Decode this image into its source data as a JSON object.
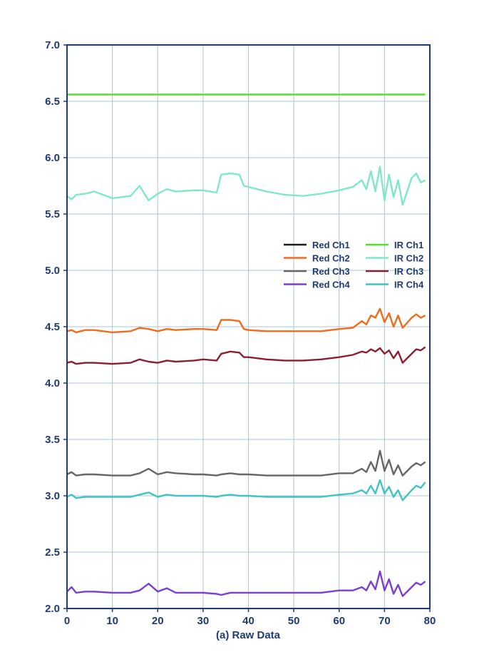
{
  "chart_data": {
    "type": "line",
    "title": "",
    "xlabel": "(a) Raw Data",
    "ylabel": "",
    "xlim": [
      0,
      80
    ],
    "ylim": [
      2.0,
      7.0
    ],
    "xticks": [
      0,
      10,
      20,
      30,
      40,
      50,
      60,
      70,
      80
    ],
    "yticks": [
      "2.0",
      "2.5",
      "3.0",
      "3.5",
      "4.0",
      "4.5",
      "5.0",
      "5.5",
      "6.0",
      "6.5",
      "7.0"
    ],
    "grid": true,
    "legend_position": "right-middle",
    "x": [
      0,
      1,
      2,
      4,
      6,
      10,
      14,
      16,
      18,
      20,
      22,
      24,
      28,
      30,
      33,
      34,
      36,
      38,
      39,
      40,
      44,
      48,
      52,
      56,
      60,
      63,
      65,
      66,
      67,
      68,
      69,
      70,
      71,
      72,
      73,
      74,
      76,
      77,
      78,
      79
    ],
    "series": [
      {
        "name": "Red Ch1",
        "color": "#1a1a1a",
        "values": [
          null,
          null,
          null,
          null,
          null,
          null,
          null,
          null,
          null,
          null,
          null,
          null,
          null,
          null,
          null,
          null,
          null,
          null,
          null,
          null,
          null,
          null,
          null,
          null,
          null,
          null,
          null,
          null,
          null,
          null,
          null,
          null,
          null,
          null,
          null,
          null,
          null,
          null,
          null,
          null
        ]
      },
      {
        "name": "Red Ch2",
        "color": "#f26b1d",
        "values": [
          4.46,
          4.47,
          4.45,
          4.47,
          4.47,
          4.45,
          4.46,
          4.49,
          4.48,
          4.46,
          4.48,
          4.47,
          4.48,
          4.48,
          4.47,
          4.56,
          4.56,
          4.55,
          4.48,
          4.47,
          4.46,
          4.46,
          4.46,
          4.46,
          4.48,
          4.49,
          4.55,
          4.52,
          4.6,
          4.58,
          4.66,
          4.54,
          4.62,
          4.5,
          4.6,
          4.49,
          4.58,
          4.61,
          4.58,
          4.6
        ]
      },
      {
        "name": "Red Ch3",
        "color": "#666666",
        "values": [
          3.19,
          3.21,
          3.18,
          3.19,
          3.19,
          3.18,
          3.18,
          3.2,
          3.24,
          3.19,
          3.21,
          3.2,
          3.19,
          3.19,
          3.18,
          3.19,
          3.2,
          3.19,
          3.19,
          3.19,
          3.18,
          3.18,
          3.18,
          3.18,
          3.2,
          3.2,
          3.24,
          3.21,
          3.3,
          3.22,
          3.4,
          3.22,
          3.32,
          3.19,
          3.27,
          3.18,
          3.26,
          3.29,
          3.27,
          3.3
        ]
      },
      {
        "name": "Red Ch4",
        "color": "#7a3fd1",
        "values": [
          2.15,
          2.19,
          2.14,
          2.15,
          2.15,
          2.14,
          2.14,
          2.16,
          2.22,
          2.15,
          2.18,
          2.14,
          2.14,
          2.14,
          2.13,
          2.12,
          2.14,
          2.14,
          2.14,
          2.14,
          2.14,
          2.14,
          2.14,
          2.14,
          2.16,
          2.16,
          2.19,
          2.16,
          2.24,
          2.17,
          2.33,
          2.16,
          2.26,
          2.13,
          2.21,
          2.11,
          2.19,
          2.23,
          2.21,
          2.24
        ]
      },
      {
        "name": "IR Ch1",
        "color": "#55e02e",
        "values": [
          6.56,
          6.56,
          6.56,
          6.56,
          6.56,
          6.56,
          6.56,
          6.56,
          6.56,
          6.56,
          6.56,
          6.56,
          6.56,
          6.56,
          6.56,
          6.56,
          6.56,
          6.56,
          6.56,
          6.56,
          6.56,
          6.56,
          6.56,
          6.56,
          6.56,
          6.56,
          6.56,
          6.56,
          6.56,
          6.56,
          6.56,
          6.56,
          6.56,
          6.56,
          6.56,
          6.56,
          6.56,
          6.56,
          6.56,
          6.56
        ]
      },
      {
        "name": "IR Ch2",
        "color": "#7fe8c8",
        "values": [
          5.66,
          5.63,
          5.67,
          5.68,
          5.7,
          5.64,
          5.66,
          5.75,
          5.62,
          5.68,
          5.72,
          5.7,
          5.71,
          5.71,
          5.69,
          5.85,
          5.86,
          5.85,
          5.75,
          5.74,
          5.7,
          5.67,
          5.66,
          5.68,
          5.71,
          5.74,
          5.8,
          5.72,
          5.88,
          5.7,
          5.92,
          5.62,
          5.85,
          5.65,
          5.8,
          5.58,
          5.82,
          5.86,
          5.78,
          5.8
        ]
      },
      {
        "name": "IR Ch3",
        "color": "#8b1f2f",
        "values": [
          4.18,
          4.19,
          4.17,
          4.18,
          4.18,
          4.17,
          4.18,
          4.21,
          4.19,
          4.18,
          4.2,
          4.19,
          4.2,
          4.21,
          4.2,
          4.26,
          4.28,
          4.27,
          4.23,
          4.23,
          4.21,
          4.2,
          4.2,
          4.21,
          4.23,
          4.25,
          4.28,
          4.27,
          4.3,
          4.28,
          4.31,
          4.26,
          4.29,
          4.22,
          4.28,
          4.18,
          4.26,
          4.3,
          4.29,
          4.32
        ]
      },
      {
        "name": "IR Ch4",
        "color": "#3fc4c4",
        "values": [
          2.99,
          3.01,
          2.98,
          2.99,
          2.99,
          2.99,
          2.99,
          3.01,
          3.03,
          2.99,
          3.01,
          3.0,
          3.0,
          3.0,
          2.99,
          3.0,
          3.01,
          3.0,
          3.0,
          3.0,
          2.99,
          2.99,
          2.99,
          2.99,
          3.01,
          3.02,
          3.05,
          3.02,
          3.09,
          3.02,
          3.14,
          3.02,
          3.08,
          2.99,
          3.05,
          2.96,
          3.05,
          3.09,
          3.07,
          3.12
        ]
      }
    ]
  }
}
